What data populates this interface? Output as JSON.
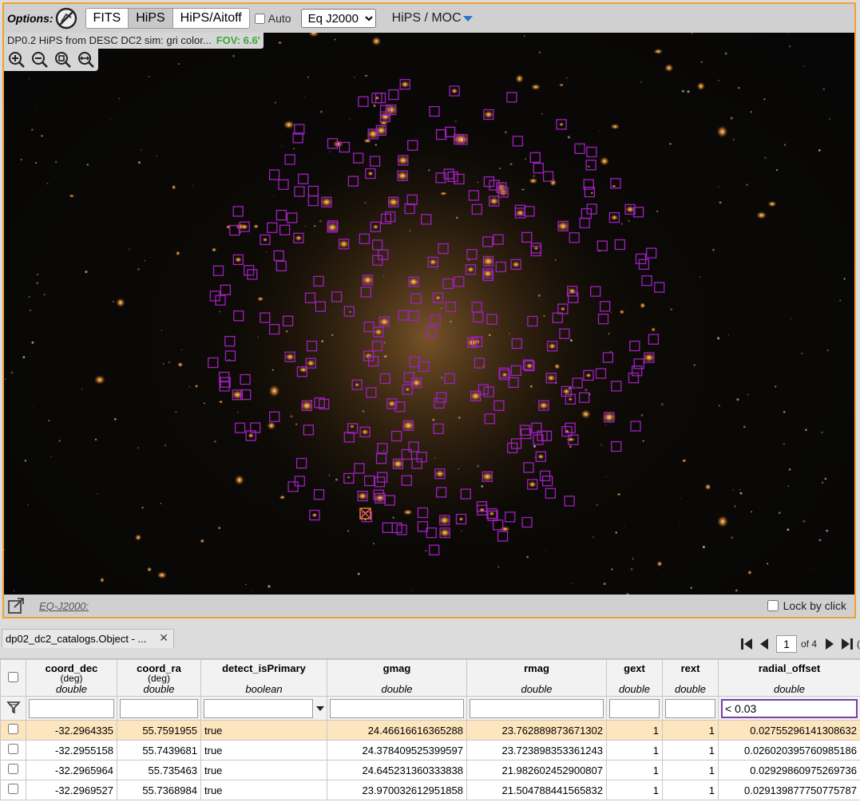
{
  "toolbar": {
    "options_label": "Options:",
    "projections": [
      {
        "label": "FITS",
        "active": false
      },
      {
        "label": "HiPS",
        "active": true
      },
      {
        "label": "HiPS/Aitoff",
        "active": false
      }
    ],
    "auto_label": "Auto",
    "coord_system": "Eq J2000",
    "layer_menu": "HiPS / MOC"
  },
  "viewer": {
    "image_title": "DP0.2 HiPS from DESC DC2 sim: gri color...",
    "fov": "FOV: 6.6'",
    "zoom_icons": [
      "zoom-in-icon",
      "zoom-out-icon",
      "zoom-fit-icon",
      "zoom-fill-width-icon"
    ],
    "eq_readout": "EQ-J2000:",
    "lock_by_click": "Lock by click",
    "overlay_color": "#a020c0",
    "highlight_color": "#e0742a",
    "frame_color": "#f0a030"
  },
  "table": {
    "tab_title": "dp02_dc2_catalogs.Object - ...",
    "pager": {
      "page": "1",
      "of": "of 4",
      "extra": "("
    },
    "columns": [
      {
        "name": "coord_dec",
        "unit": "(deg)",
        "type": "double"
      },
      {
        "name": "coord_ra",
        "unit": "(deg)",
        "type": "double"
      },
      {
        "name": "detect_isPrimary",
        "unit": "",
        "type": "boolean"
      },
      {
        "name": "gmag",
        "unit": "",
        "type": "double"
      },
      {
        "name": "rmag",
        "unit": "",
        "type": "double"
      },
      {
        "name": "gext",
        "unit": "",
        "type": "double"
      },
      {
        "name": "rext",
        "unit": "",
        "type": "double"
      },
      {
        "name": "radial_offset",
        "unit": "",
        "type": "double"
      }
    ],
    "filters": [
      "",
      "",
      "",
      "",
      "",
      "",
      "",
      "< 0.03"
    ],
    "rows": [
      [
        "-32.2964335",
        "55.7591955",
        "true",
        "24.46616616365288",
        "23.762889873671302",
        "1",
        "1",
        "0.02755296141308632"
      ],
      [
        "-32.2955158",
        "55.7439681",
        "true",
        "24.378409525399597",
        "23.723898353361243",
        "1",
        "1",
        "0.026020395760985186"
      ],
      [
        "-32.2965964",
        "55.735463",
        "true",
        "24.645231360333838",
        "21.982602452900807",
        "1",
        "1",
        "0.02929860975269736"
      ],
      [
        "-32.2969527",
        "55.7368984",
        "true",
        "23.970032612951858",
        "21.504788441565832",
        "1",
        "1",
        "0.029139877750775787"
      ]
    ]
  }
}
